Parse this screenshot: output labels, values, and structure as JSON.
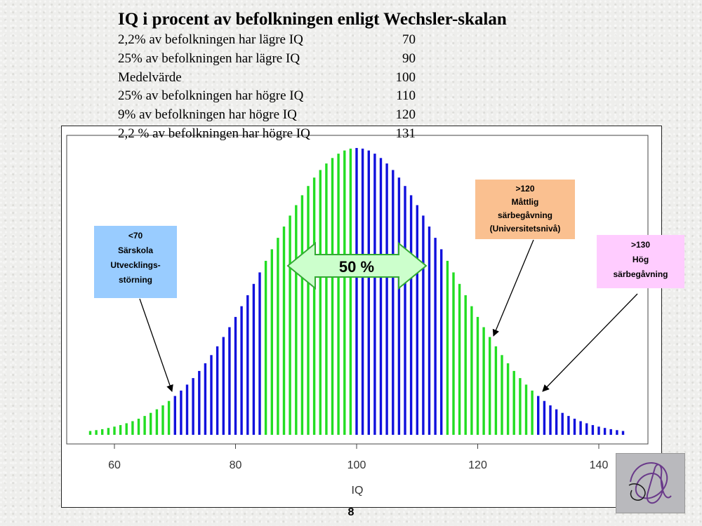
{
  "title": "IQ i procent av befolkningen enligt Wechsler-skalan",
  "stats": [
    {
      "label": "2,2% av befolkningen har lägre IQ",
      "value": "70"
    },
    {
      "label": "25% av befolkningen har lägre IQ",
      "value": "90"
    },
    {
      "label": "Medelvärde",
      "value": "100"
    },
    {
      "label": "25% av befolkningen har högre IQ",
      "value": "110"
    },
    {
      "label": "9% av befolkningen har högre IQ",
      "value": "120"
    },
    {
      "label": "2,2 % av befolkningen har högre IQ",
      "value": "131"
    }
  ],
  "callouts": {
    "low": {
      "lines": [
        "<70",
        "Särskola",
        "Utvecklings-",
        "störning"
      ],
      "color": "#99ccff"
    },
    "mid": {
      "lines": [
        ">120",
        "Måttlig",
        "särbegåvning",
        "(Universitetsnivå)"
      ],
      "color": "#fac090"
    },
    "high": {
      "lines": [
        ">130",
        "Hög",
        "särbegåvning"
      ],
      "color": "#ffccff"
    }
  },
  "arrow_label": "50 %",
  "page_number": "8",
  "colors": {
    "green": "#22dd22",
    "blue": "#1111dd",
    "arrow_fill": "#ccffcc",
    "arrow_stroke": "#33aa33"
  },
  "chart_data": {
    "type": "bar",
    "xlabel": "IQ",
    "ylabel": "",
    "xlim": [
      52,
      150
    ],
    "xticks": [
      60,
      80,
      100,
      120,
      140
    ],
    "bars": {
      "start": 56,
      "end": 144,
      "step": 1,
      "mean": 100,
      "sd": 15
    },
    "color_bands": [
      {
        "from": 56,
        "to": 69,
        "color": "green"
      },
      {
        "from": 70,
        "to": 84,
        "color": "blue"
      },
      {
        "from": 85,
        "to": 99,
        "color": "green"
      },
      {
        "from": 100,
        "to": 114,
        "color": "blue"
      },
      {
        "from": 115,
        "to": 129,
        "color": "green"
      },
      {
        "from": 130,
        "to": 144,
        "color": "blue"
      }
    ]
  }
}
